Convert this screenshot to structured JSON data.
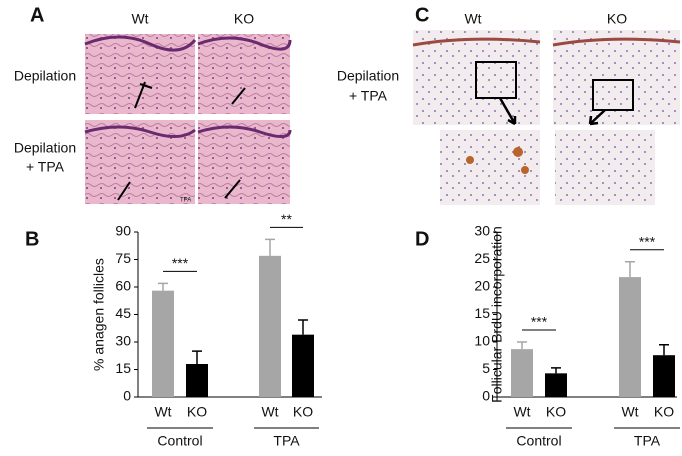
{
  "figure": {
    "panel_A": {
      "label": "A",
      "col_labels": [
        "Wt",
        "KO"
      ],
      "row_labels": [
        [
          "Depilation"
        ],
        [
          "Depilation",
          "+ TPA"
        ]
      ],
      "image_note": "TPA"
    },
    "panel_C": {
      "label": "C",
      "col_labels": [
        "Wt",
        "KO"
      ],
      "row_label": [
        "Depilation",
        "+ TPA"
      ]
    }
  },
  "chart_data": [
    {
      "type": "bar",
      "panel": "B",
      "y_label": "% anagen follicles",
      "categories": [
        "Wt",
        "KO",
        "Wt",
        "KO"
      ],
      "groups": [
        "Control",
        "TPA"
      ],
      "values": [
        58,
        18,
        77,
        34
      ],
      "errors": [
        4,
        7,
        9,
        8
      ],
      "colors": [
        "#a6a6a6",
        "#000000",
        "#a6a6a6",
        "#000000"
      ],
      "annotations": [
        "***",
        "**"
      ],
      "ylim": [
        0,
        90
      ],
      "yticks": [
        0,
        15,
        30,
        45,
        60,
        75,
        90
      ]
    },
    {
      "type": "bar",
      "panel": "D",
      "y_label": "Follicular BrdU incorporation",
      "categories": [
        "Wt",
        "KO",
        "Wt",
        "KO"
      ],
      "groups": [
        "Control",
        "TPA"
      ],
      "values": [
        8.7,
        4.3,
        21.8,
        7.6
      ],
      "errors": [
        1.3,
        1.0,
        2.8,
        1.9
      ],
      "colors": [
        "#a6a6a6",
        "#000000",
        "#a6a6a6",
        "#000000"
      ],
      "annotations": [
        "***",
        "***"
      ],
      "ylim": [
        0,
        30
      ],
      "yticks": [
        0,
        5,
        10,
        15,
        20,
        25,
        30
      ]
    }
  ]
}
